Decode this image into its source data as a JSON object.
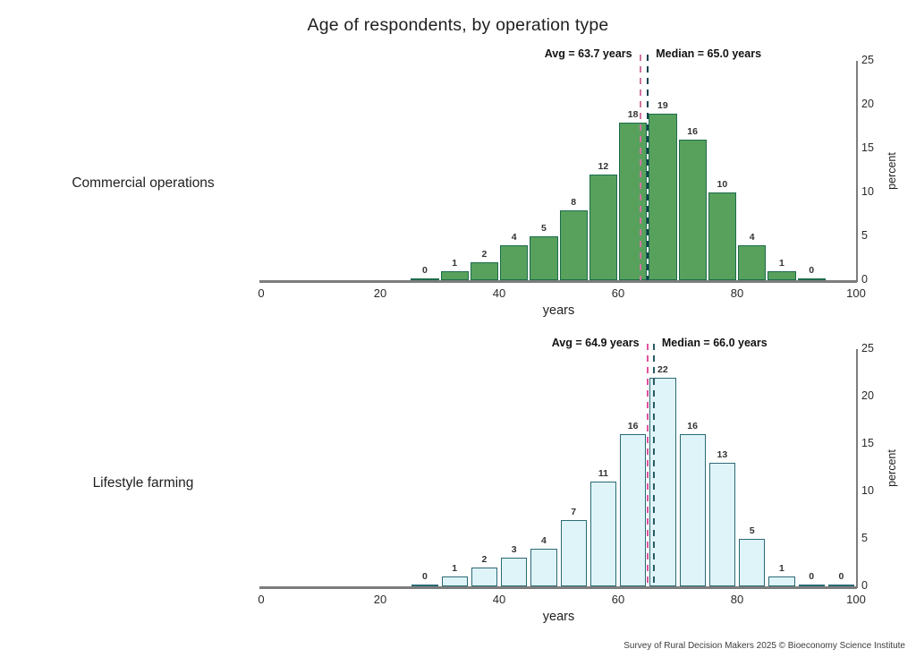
{
  "title": "Age of respondents, by operation type",
  "footer": "Survey of Rural Decision Makers 2025 © Bioeconomy Science Institute",
  "chart_data": [
    {
      "type": "bar",
      "panel_label": "Commercial operations",
      "bin_start": 25,
      "bin_width": 5,
      "bin_edges": [
        25,
        30,
        35,
        40,
        45,
        50,
        55,
        60,
        65,
        70,
        75,
        80,
        85,
        90,
        95
      ],
      "values": [
        0,
        1,
        2,
        4,
        5,
        8,
        12,
        18,
        19,
        16,
        10,
        4,
        1,
        0
      ],
      "avg": 63.7,
      "median": 65.0,
      "avg_label": "Avg = 63.7 years",
      "median_label": "Median = 65.0 years",
      "xlabel": "years",
      "ylabel": "percent",
      "xlim": [
        0,
        100
      ],
      "ylim": [
        0,
        25
      ],
      "x_ticks": [
        0,
        20,
        40,
        60,
        80,
        100
      ],
      "y_ticks": [
        0,
        5,
        10,
        15,
        20,
        25
      ],
      "grid": false,
      "bar_fill": "#57a15d",
      "bar_stroke": "#1d6b4c",
      "avg_color": "#d0749f",
      "median_color": "#10404f"
    },
    {
      "type": "bar",
      "panel_label": "Lifestyle farming",
      "bin_start": 25,
      "bin_width": 5,
      "bin_edges": [
        25,
        30,
        35,
        40,
        45,
        50,
        55,
        60,
        65,
        70,
        75,
        80,
        85,
        90,
        95,
        100
      ],
      "values": [
        0,
        1,
        2,
        3,
        4,
        7,
        11,
        16,
        22,
        16,
        13,
        5,
        1,
        0,
        0
      ],
      "avg": 64.9,
      "median": 66.0,
      "avg_label": "Avg = 64.9 years",
      "median_label": "Median = 66.0 years",
      "xlabel": "years",
      "ylabel": "percent",
      "xlim": [
        0,
        100
      ],
      "ylim": [
        0,
        25
      ],
      "x_ticks": [
        0,
        20,
        40,
        60,
        80,
        100
      ],
      "y_ticks": [
        0,
        5,
        10,
        15,
        20,
        25
      ],
      "grid": false,
      "bar_fill": "#dff4f9",
      "bar_stroke": "#2a6a74",
      "avg_color": "#e0529c",
      "median_color": "#2a5a66"
    }
  ]
}
